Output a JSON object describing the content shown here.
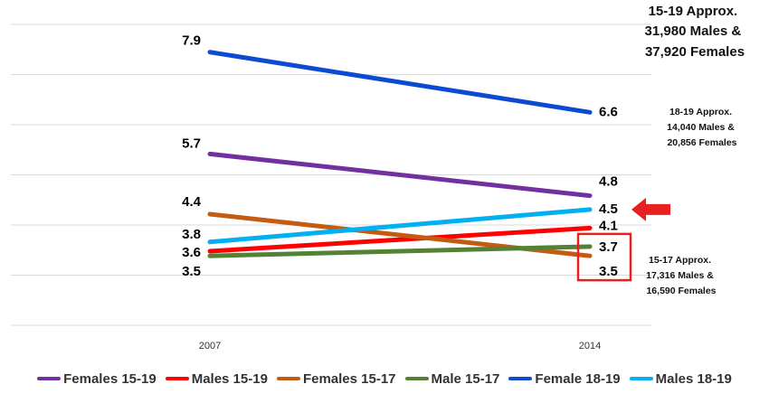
{
  "chart_data": {
    "type": "line",
    "categories": [
      "2007",
      "2014"
    ],
    "series": [
      {
        "name": "Females 15-19",
        "values": [
          5.7,
          4.8
        ],
        "color": "#7030A0",
        "labels": [
          "5.7",
          "4.8"
        ]
      },
      {
        "name": "Males 15-19",
        "values": [
          3.6,
          4.1
        ],
        "color": "#FF0000",
        "labels": [
          "3.6",
          "4.1"
        ]
      },
      {
        "name": "Females 15-17",
        "values": [
          4.4,
          3.5
        ],
        "color": "#C55A11",
        "labels": [
          "4.4",
          "3.5"
        ]
      },
      {
        "name": "Male 15-17",
        "values": [
          3.5,
          3.7
        ],
        "color": "#548235",
        "labels": [
          "3.5",
          "3.7"
        ]
      },
      {
        "name": "Female 18-19",
        "values": [
          7.9,
          6.6
        ],
        "color": "#0B4BD2",
        "labels": [
          "7.9",
          "6.6"
        ]
      },
      {
        "name": "Males 18-19",
        "values": [
          3.8,
          4.5
        ],
        "color": "#00B0F0",
        "labels": [
          "3.8",
          "4.5"
        ]
      }
    ],
    "ylim": [
      2.0,
      8.5
    ],
    "grid": true,
    "legend_position": "bottom",
    "annotations": [
      {
        "lines": [
          "15-19 Approx.",
          "31,980 Males &",
          "37,920 Females"
        ]
      },
      {
        "lines": [
          "18-19 Approx.",
          "14,040 Males &",
          "20,856 Females"
        ]
      },
      {
        "lines": [
          "15-17 Approx.",
          "17,316 Males &",
          "16,590 Females"
        ]
      }
    ],
    "highlight_color": "#E8201F"
  }
}
